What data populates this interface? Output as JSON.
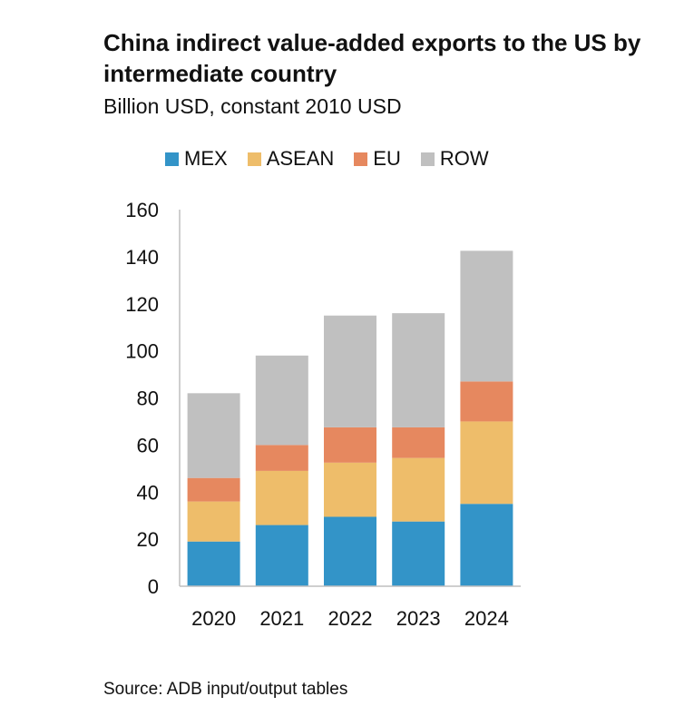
{
  "chart_data": {
    "type": "bar",
    "stacked": true,
    "title": "China indirect value-added exports to the US by intermediate country",
    "subtitle": "Billion USD, constant 2010 USD",
    "categories": [
      "2020",
      "2021",
      "2022",
      "2023",
      "2024"
    ],
    "series": [
      {
        "name": "MEX",
        "color": "#3394c8",
        "values": [
          19,
          26,
          29.5,
          27.5,
          35
        ]
      },
      {
        "name": "ASEAN",
        "color": "#eebd6a",
        "values": [
          17,
          23,
          23,
          27,
          35
        ]
      },
      {
        "name": "EU",
        "color": "#e6885f",
        "values": [
          10,
          11,
          15,
          13,
          17
        ]
      },
      {
        "name": "ROW",
        "color": "#c0c0c0",
        "values": [
          36,
          38,
          47.5,
          48.5,
          55.5
        ]
      }
    ],
    "ylim": [
      0,
      160
    ],
    "yticks": [
      "0",
      "20",
      "40",
      "60",
      "80",
      "100",
      "120",
      "140",
      "160"
    ],
    "grid": false,
    "legend_position": "top"
  },
  "source": "Source: ADB input/output tables"
}
